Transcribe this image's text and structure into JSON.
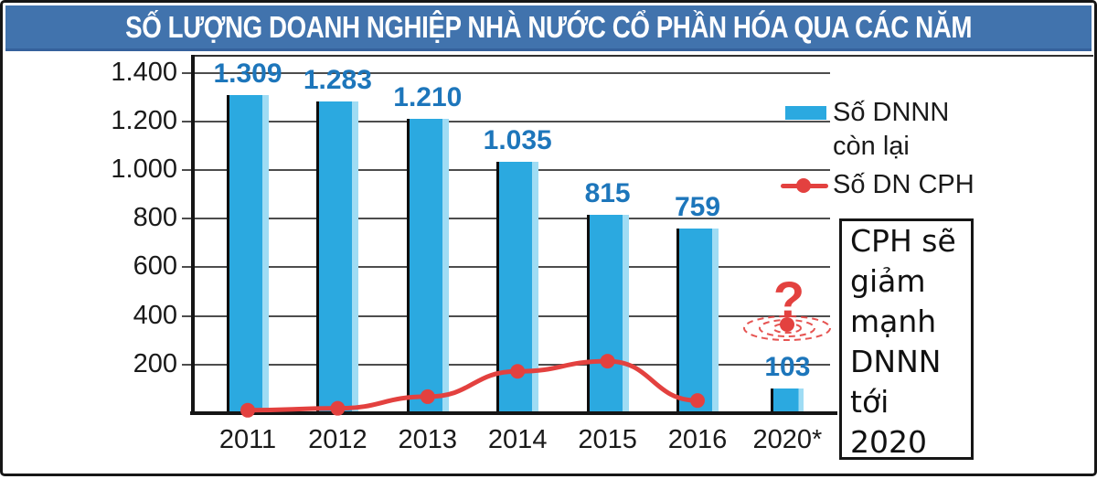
{
  "title": "SỐ LƯỢNG DOANH NGHIỆP NHÀ NƯỚC CỔ PHẦN HÓA QUA CÁC NĂM",
  "colors": {
    "title_bg": "#4173AD",
    "bar": "#2BA9E0",
    "bar_light_edge": "#9FDCF4",
    "bar_label": "#1D76BB",
    "line": "#E3413F",
    "grid": "#4d4d4d",
    "axis": "#151515"
  },
  "chart_data": {
    "type": "bar",
    "categories": [
      "2011",
      "2012",
      "2013",
      "2014",
      "2015",
      "2016",
      "2020*"
    ],
    "series": [
      {
        "name": "Số DNNN còn lại",
        "type": "bar",
        "values": [
          1309,
          1283,
          1210,
          1035,
          815,
          759,
          103
        ],
        "labels": [
          "1.309",
          "1.283",
          "1.210",
          "1.035",
          "815",
          "759",
          "103"
        ]
      },
      {
        "name": "Số DN CPH",
        "type": "line",
        "values": [
          12,
          20,
          68,
          172,
          214,
          52,
          null
        ]
      }
    ],
    "yticks": [
      "1.400",
      "1.200",
      "1.000",
      "800",
      "600",
      "400",
      "200"
    ],
    "ytick_values": [
      1400,
      1200,
      1000,
      800,
      600,
      400,
      200
    ],
    "ylim": [
      0,
      1470
    ],
    "xlabel": "",
    "ylabel": "",
    "grid": true,
    "legend_position": "right",
    "unknown_marker": {
      "category": "2020*",
      "symbol": "?",
      "approx_value": 365
    }
  },
  "legend": {
    "items": [
      {
        "label": "Số DNNN còn lại",
        "swatch": "bar"
      },
      {
        "label": "Số DN CPH",
        "swatch": "line-dot"
      }
    ]
  },
  "annotation": {
    "text": "CPH sẽ giảm mạnh DNNN tới 2020"
  }
}
